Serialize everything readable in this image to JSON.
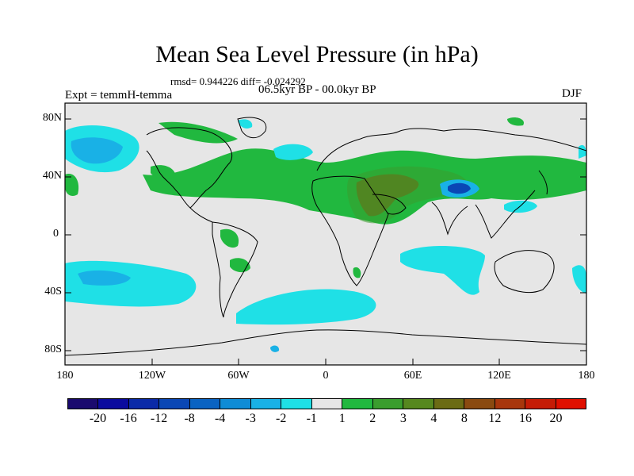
{
  "title": "Mean Sea Level Pressure (in hPa)",
  "stats": "rmsd= 0.944226 diff= -0.024292",
  "experiment": "Expt = temmH-temma",
  "period": "06.5kyr BP - 00.0kyr BP",
  "season": "DJF",
  "y_axis_labels": [
    "80N",
    "40N",
    "0",
    "40S",
    "80S"
  ],
  "x_axis_labels": [
    "180",
    "120W",
    "60W",
    "0",
    "60E",
    "120E",
    "180"
  ],
  "colorbar": {
    "labels": [
      "-20",
      "-16",
      "-12",
      "-8",
      "-4",
      "-3",
      "-2",
      "-1",
      "1",
      "2",
      "3",
      "4",
      "8",
      "12",
      "16",
      "20"
    ],
    "colors": [
      "#1a0a6e",
      "#0b0b9e",
      "#0b2aa8",
      "#0a47b5",
      "#0a63c2",
      "#0f8cd6",
      "#19b1e6",
      "#1fe0e6",
      "#e6e6e6",
      "#21b83f",
      "#3a9d2e",
      "#56881f",
      "#6b6b14",
      "#8a4a10",
      "#a8360c",
      "#c51c06",
      "#e01000"
    ]
  },
  "map_colors": {
    "background": "#e6e6e6",
    "positive_1": "#21b83f",
    "positive_3": "#6b6b14",
    "negative_1": "#1fe0e6",
    "negative_2": "#19b1e6",
    "negative_4": "#0a47b5",
    "coast": "#000000"
  }
}
